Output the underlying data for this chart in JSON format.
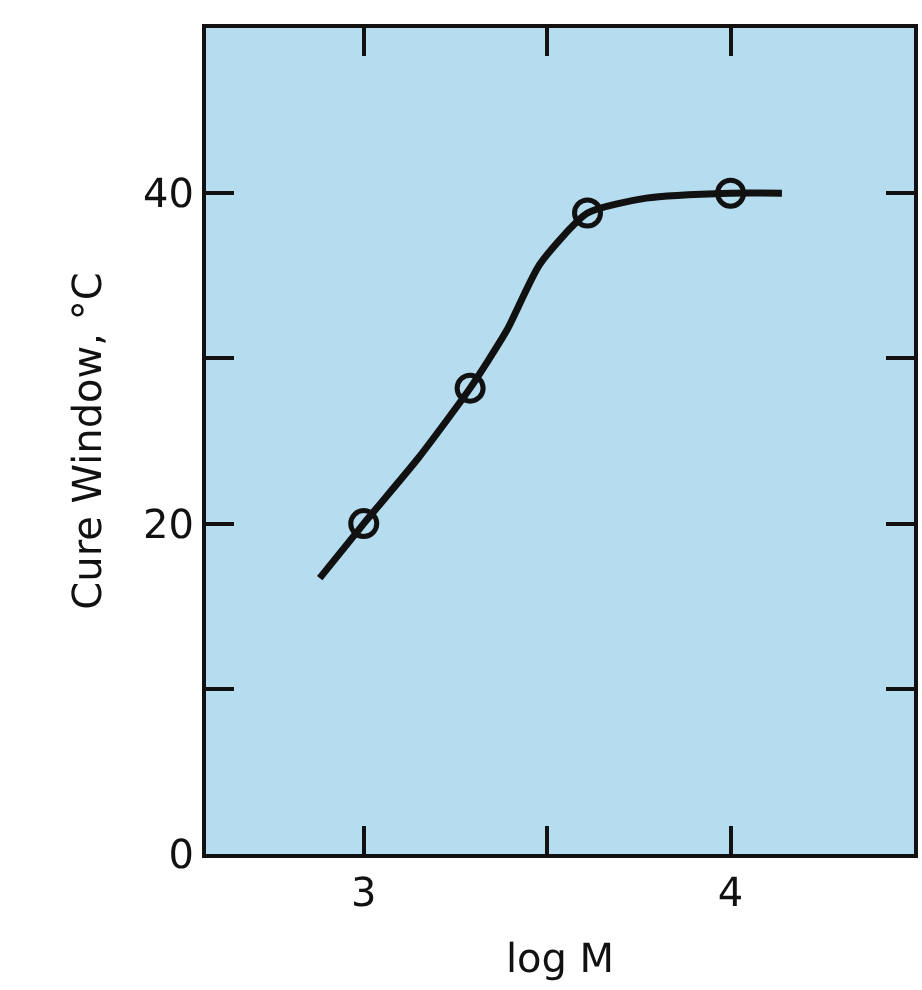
{
  "chart_data": {
    "type": "line",
    "xlabel": "log M",
    "ylabel": "Cure Window, °C",
    "xlim": [
      2.57,
      4.5
    ],
    "ylim": [
      0,
      50
    ],
    "xticks": [
      3,
      {
        "value": 3.5,
        "label": null
      },
      4,
      {
        "value": 4.5,
        "label": null
      }
    ],
    "yticks": [
      0,
      {
        "value": 10,
        "label": null
      },
      20,
      {
        "value": 30,
        "label": null
      },
      40
    ],
    "grid": false,
    "series": [
      {
        "color": "#111111",
        "marker": "none",
        "line_style": "solid",
        "x": [
          2.88,
          3.0,
          3.15,
          3.29,
          3.39,
          3.48,
          3.61,
          3.77,
          4.0,
          4.14
        ],
        "values": [
          16.7,
          20,
          24,
          28.2,
          31.7,
          35.7,
          38.8,
          39.7,
          40,
          40
        ]
      },
      {
        "type": "scatter",
        "color": "#111111",
        "marker": "circle",
        "x": [
          3.0,
          3.29,
          3.61,
          4.0
        ],
        "values": [
          20,
          28.2,
          38.8,
          40
        ]
      }
    ]
  }
}
